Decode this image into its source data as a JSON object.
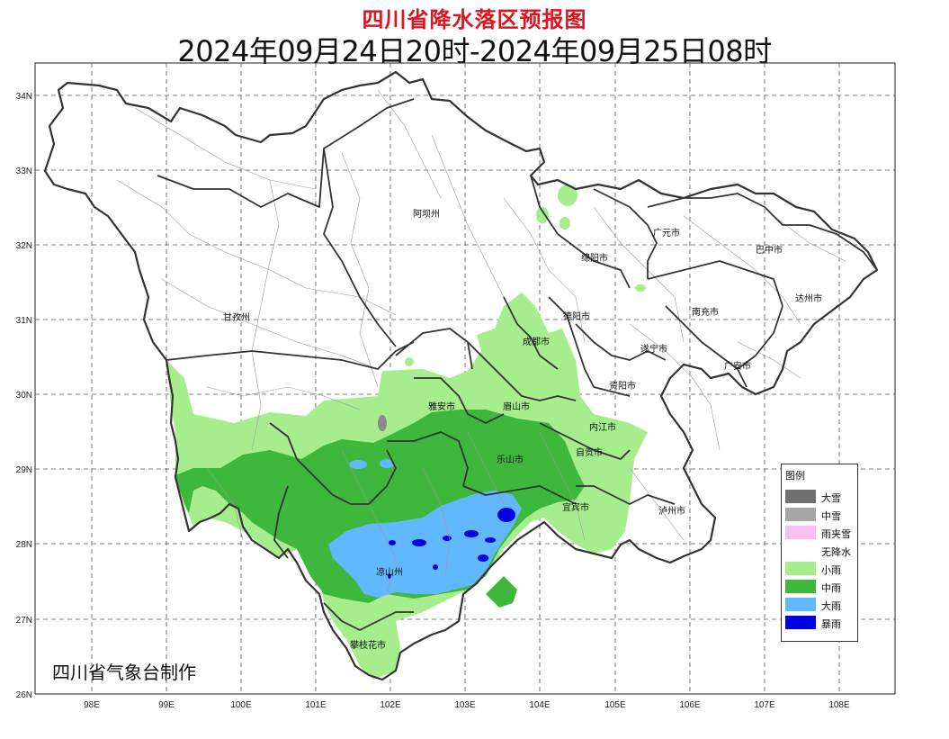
{
  "title": "四川省降水落区预报图",
  "time_range": "2024年09月24日20时-2024年09月25日08时",
  "credit": "四川省气象台制作",
  "axes": {
    "lon_labels": [
      "98E",
      "99E",
      "100E",
      "101E",
      "102E",
      "103E",
      "104E",
      "105E",
      "106E",
      "107E",
      "108E"
    ],
    "lat_labels": [
      "34N",
      "33N",
      "32N",
      "31N",
      "30N",
      "29N",
      "28N",
      "27N",
      "26N"
    ]
  },
  "cities": [
    {
      "name": "阿坝州"
    },
    {
      "name": "广元市"
    },
    {
      "name": "巴中市"
    },
    {
      "name": "绵阳市"
    },
    {
      "name": "达州市"
    },
    {
      "name": "甘孜州"
    },
    {
      "name": "德阳市"
    },
    {
      "name": "南充市"
    },
    {
      "name": "成都市"
    },
    {
      "name": "遂宁市"
    },
    {
      "name": "广安市"
    },
    {
      "name": "资阳市"
    },
    {
      "name": "雅安市"
    },
    {
      "name": "眉山市"
    },
    {
      "name": "内江市"
    },
    {
      "name": "自贡市"
    },
    {
      "name": "乐山市"
    },
    {
      "name": "宜宾市"
    },
    {
      "name": "泸州市"
    },
    {
      "name": "凉山州"
    },
    {
      "name": "攀枝花市"
    }
  ],
  "legend": {
    "title": "图例",
    "items": [
      {
        "label": "大雪",
        "color": "#707070"
      },
      {
        "label": "中雪",
        "color": "#a6a6a6"
      },
      {
        "label": "雨夹雪",
        "color": "#fbbff2"
      },
      {
        "label": "无降水",
        "color": "#ffffff"
      },
      {
        "label": "小雨",
        "color": "#a6ed8e"
      },
      {
        "label": "中雨",
        "color": "#3db83d"
      },
      {
        "label": "大雨",
        "color": "#61b8ff"
      },
      {
        "label": "暴雨",
        "color": "#0000e6"
      }
    ]
  }
}
